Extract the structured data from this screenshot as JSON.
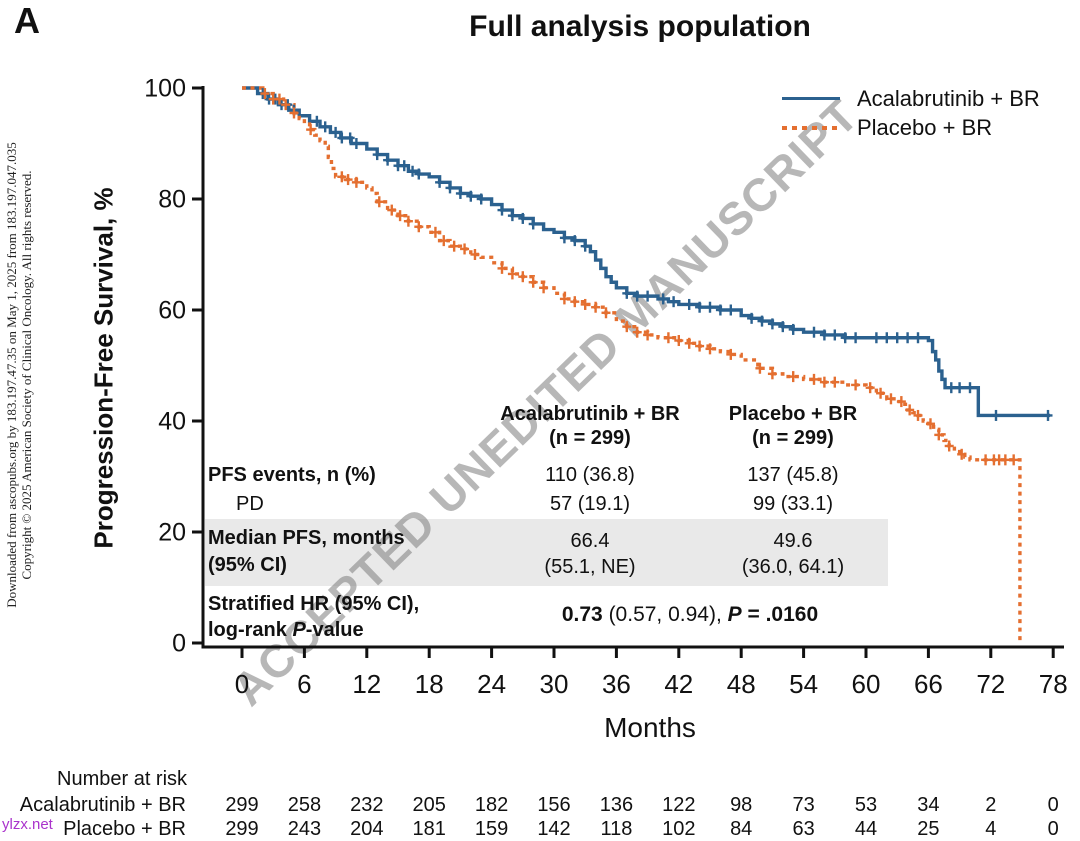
{
  "panel_label": "A",
  "title": "Full analysis population",
  "side_note": {
    "line1": "Downloaded from ascopubs.org by 183.197.47.35 on May 1, 2025 from 183.197.047.035",
    "line2": "Copyright © 2025 American Society of Clinical Oncology. All rights reserved."
  },
  "watermark": "ACCEPTED UNEDITED MANUSCRIPT",
  "ylzx": "ylzx.net",
  "legend": [
    {
      "label": "Acalabrutinib + BR",
      "color": "#2b618f",
      "style": "solid"
    },
    {
      "label": "Placebo + BR",
      "color": "#e46f30",
      "style": "dotted"
    }
  ],
  "stats": {
    "col1_header": "Acalabrutinib + BR",
    "col1_n": "(n = 299)",
    "col2_header": "Placebo + BR",
    "col2_n": "(n = 299)",
    "rows": {
      "pfs_label": "PFS events, n (%)",
      "pfs_c1": "110 (36.8)",
      "pfs_c2": "137 (45.8)",
      "pd_label": "PD",
      "pd_c1": "57 (19.1)",
      "pd_c2": "99 (33.1)",
      "median_label1": "Median PFS, months",
      "median_label2": "(95% CI)",
      "median_c1a": "66.4",
      "median_c1b": "(55.1, NE)",
      "median_c2a": "49.6",
      "median_c2b": "(36.0, 64.1)",
      "hr_label1": "Stratified HR (95% CI),",
      "hr_label2_pre": "log-rank ",
      "hr_label2_p": "P",
      "hr_label2_post": "-value",
      "hr_value_bold": "0.73",
      "hr_value_ci": " (0.57, 0.94), ",
      "hr_value_p": "P",
      "hr_value_eq": " = .0160"
    }
  },
  "chart_data": {
    "type": "line",
    "subtype": "kaplan-meier-step",
    "title": "Full analysis population",
    "xlabel": "Months",
    "ylabel": "Progression-Free Survival, %",
    "xlim": [
      0,
      78
    ],
    "ylim": [
      0,
      100
    ],
    "x_ticks": [
      0,
      6,
      12,
      18,
      24,
      30,
      36,
      42,
      48,
      54,
      60,
      66,
      72,
      78
    ],
    "y_ticks": [
      0,
      20,
      40,
      60,
      80,
      100
    ],
    "grid": false,
    "legend_position": "top-right",
    "series": [
      {
        "name": "Acalabrutinib + BR",
        "color": "#2b618f",
        "line": "solid",
        "points": [
          [
            0,
            100
          ],
          [
            1.5,
            99
          ],
          [
            2.5,
            98
          ],
          [
            3.5,
            97
          ],
          [
            4.5,
            96
          ],
          [
            5.5,
            95
          ],
          [
            6.5,
            94
          ],
          [
            7.5,
            93
          ],
          [
            8.5,
            92
          ],
          [
            9.5,
            91
          ],
          [
            10.5,
            90
          ],
          [
            12,
            89
          ],
          [
            13,
            88
          ],
          [
            14,
            87
          ],
          [
            15,
            86
          ],
          [
            16,
            85
          ],
          [
            17,
            84.5
          ],
          [
            18,
            84
          ],
          [
            19,
            83
          ],
          [
            20,
            82
          ],
          [
            21,
            81
          ],
          [
            22,
            80.5
          ],
          [
            23,
            80
          ],
          [
            24,
            79
          ],
          [
            25,
            78
          ],
          [
            26,
            77
          ],
          [
            27,
            76.5
          ],
          [
            28,
            75.5
          ],
          [
            29,
            74.5
          ],
          [
            30,
            74
          ],
          [
            31,
            73
          ],
          [
            32,
            72.5
          ],
          [
            33,
            71.5
          ],
          [
            33.5,
            70.5
          ],
          [
            34,
            69
          ],
          [
            34.5,
            67.5
          ],
          [
            35,
            66
          ],
          [
            35.5,
            65
          ],
          [
            36,
            64
          ],
          [
            37,
            63
          ],
          [
            38,
            62.5
          ],
          [
            40,
            62
          ],
          [
            41,
            61.5
          ],
          [
            42,
            61
          ],
          [
            44,
            60.5
          ],
          [
            46,
            60
          ],
          [
            48,
            59
          ],
          [
            49,
            58.5
          ],
          [
            50,
            58
          ],
          [
            51,
            57.5
          ],
          [
            52,
            57
          ],
          [
            53,
            56.5
          ],
          [
            54,
            56
          ],
          [
            56,
            55.5
          ],
          [
            58,
            55
          ],
          [
            66,
            54.5
          ],
          [
            66.4,
            52.5
          ],
          [
            66.7,
            51
          ],
          [
            67,
            49
          ],
          [
            67.3,
            47.5
          ],
          [
            67.6,
            46
          ],
          [
            70.5,
            46
          ],
          [
            70.8,
            41
          ],
          [
            77.7,
            41
          ]
        ],
        "censor_months": [
          2,
          2.6,
          3.2,
          3.8,
          4.4,
          5,
          7.2,
          8,
          9,
          9.6,
          10.4,
          11,
          13,
          14,
          15,
          15.6,
          16.4,
          17,
          19,
          20,
          21,
          22,
          23,
          25,
          26,
          27,
          28,
          31,
          32,
          33,
          37,
          38,
          39,
          40.5,
          41.5,
          43,
          44,
          45,
          46,
          47,
          49,
          50,
          51,
          52,
          53,
          55,
          56,
          57,
          58,
          59,
          61,
          62,
          63,
          64,
          65,
          68.2,
          69,
          70,
          72.5,
          77.5
        ]
      },
      {
        "name": "Placebo + BR",
        "color": "#e46f30",
        "line": "dotted",
        "points": [
          [
            0,
            100
          ],
          [
            2,
            99
          ],
          [
            3,
            98
          ],
          [
            4,
            97
          ],
          [
            5,
            95.5
          ],
          [
            5.5,
            94.5
          ],
          [
            6,
            93.5
          ],
          [
            6.5,
            92.5
          ],
          [
            7,
            91.5
          ],
          [
            7.5,
            90.5
          ],
          [
            8,
            89.5
          ],
          [
            8.3,
            87.5
          ],
          [
            8.6,
            85.5
          ],
          [
            9,
            84
          ],
          [
            10,
            83.5
          ],
          [
            11,
            83
          ],
          [
            12,
            82
          ],
          [
            12.5,
            81
          ],
          [
            13,
            79.5
          ],
          [
            14,
            78
          ],
          [
            15,
            77
          ],
          [
            16,
            76
          ],
          [
            17,
            75
          ],
          [
            18,
            74
          ],
          [
            19,
            72.5
          ],
          [
            20,
            71.5
          ],
          [
            21,
            71
          ],
          [
            22,
            70
          ],
          [
            23,
            69.5
          ],
          [
            24,
            68.5
          ],
          [
            25,
            67.5
          ],
          [
            26,
            66.5
          ],
          [
            27,
            66
          ],
          [
            28,
            65
          ],
          [
            29,
            64
          ],
          [
            30,
            63
          ],
          [
            31,
            62
          ],
          [
            32,
            61.5
          ],
          [
            33,
            61
          ],
          [
            34,
            60.5
          ],
          [
            35,
            59.5
          ],
          [
            36,
            58
          ],
          [
            37,
            57
          ],
          [
            38,
            56
          ],
          [
            39,
            55.5
          ],
          [
            40,
            55
          ],
          [
            42,
            54.5
          ],
          [
            43,
            54
          ],
          [
            44,
            53.5
          ],
          [
            45,
            53
          ],
          [
            46,
            52.5
          ],
          [
            47,
            52
          ],
          [
            48,
            51
          ],
          [
            49.6,
            49.5
          ],
          [
            51,
            48.5
          ],
          [
            52,
            48
          ],
          [
            54,
            47.5
          ],
          [
            56,
            47
          ],
          [
            58,
            46.5
          ],
          [
            60,
            46
          ],
          [
            61,
            45
          ],
          [
            62,
            44
          ],
          [
            63,
            43.5
          ],
          [
            63.5,
            43
          ],
          [
            64,
            42
          ],
          [
            64.5,
            41.5
          ],
          [
            65,
            41
          ],
          [
            65.5,
            40
          ],
          [
            66,
            39.5
          ],
          [
            66.5,
            38.5
          ],
          [
            67,
            37.5
          ],
          [
            67.5,
            36.5
          ],
          [
            68,
            35.5
          ],
          [
            68.5,
            34.5
          ],
          [
            69,
            34
          ],
          [
            69.5,
            33.5
          ],
          [
            70,
            33
          ],
          [
            74.8,
            33
          ],
          [
            74.8,
            0
          ]
        ],
        "censor_months": [
          2.2,
          3,
          3.6,
          4.2,
          5,
          6.6,
          9.6,
          10.2,
          11,
          13.2,
          14.4,
          15.2,
          16,
          17,
          18.6,
          19.4,
          20.4,
          21.4,
          22.4,
          25,
          26,
          27,
          28,
          29,
          31,
          32,
          33,
          34,
          35,
          37,
          38,
          39,
          41,
          42,
          43,
          44,
          45,
          47,
          49.8,
          51,
          53,
          55,
          56,
          57,
          59,
          60.4,
          61.4,
          62.4,
          63.4,
          64.2,
          65,
          66.2,
          67,
          68,
          69.2,
          71.5,
          72.3,
          72.8,
          73.4,
          74.2
        ]
      }
    ],
    "annotation_table": {
      "columns": [
        "Acalabrutinib + BR (n = 299)",
        "Placebo + BR (n = 299)"
      ],
      "rows": [
        {
          "label": "PFS events, n (%)",
          "values": [
            "110 (36.8)",
            "137 (45.8)"
          ]
        },
        {
          "label": "PD",
          "values": [
            "57 (19.1)",
            "99 (33.1)"
          ]
        },
        {
          "label": "Median PFS, months (95% CI)",
          "values": [
            "66.4 (55.1, NE)",
            "49.6 (36.0, 64.1)"
          ]
        },
        {
          "label": "Stratified HR (95% CI), log-rank P-value",
          "values": [
            "0.73 (0.57, 0.94), P = .0160"
          ]
        }
      ]
    },
    "number_at_risk": {
      "title": "Number at risk",
      "months": [
        0,
        6,
        12,
        18,
        24,
        30,
        36,
        42,
        48,
        54,
        60,
        66,
        72,
        78
      ],
      "rows": [
        {
          "label": "Acalabrutinib + BR",
          "counts": [
            299,
            258,
            232,
            205,
            182,
            156,
            136,
            122,
            98,
            73,
            53,
            34,
            2,
            0
          ]
        },
        {
          "label": "Placebo + BR",
          "counts": [
            299,
            243,
            204,
            181,
            159,
            142,
            118,
            102,
            84,
            63,
            44,
            25,
            4,
            0
          ]
        }
      ]
    }
  }
}
